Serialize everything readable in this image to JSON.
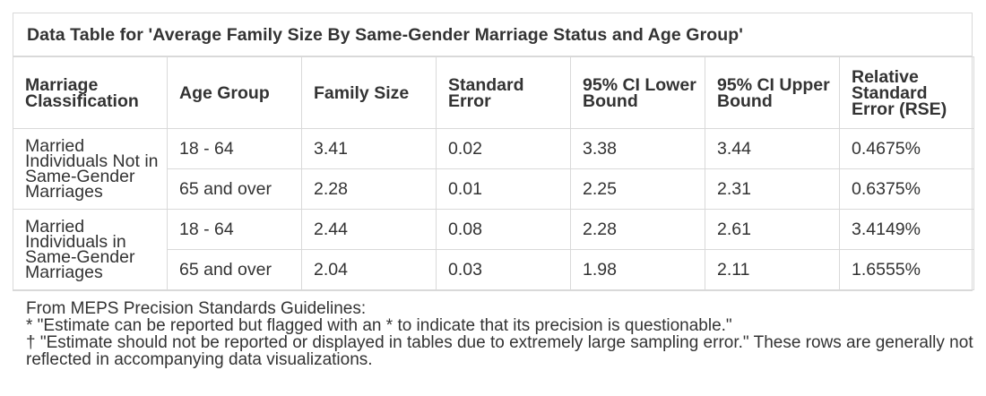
{
  "title": "Data Table for 'Average Family Size By Same-Gender Marriage Status and Age Group'",
  "columns": [
    "Marriage Classification",
    "Age Group",
    "Family Size",
    "Standard Error",
    "95% CI Lower Bound",
    "95% CI Upper Bound",
    "Relative Standard Error (RSE)"
  ],
  "groups": [
    {
      "label": "Married Individuals Not in Same-Gender Marriages",
      "rows": [
        {
          "age": "18 - 64",
          "size": "3.41",
          "se": "0.02",
          "lower": "3.38",
          "upper": "3.44",
          "rse": "0.4675%"
        },
        {
          "age": "65 and over",
          "size": "2.28",
          "se": "0.01",
          "lower": "2.25",
          "upper": "2.31",
          "rse": "0.6375%"
        }
      ]
    },
    {
      "label": "Married Individuals in Same-Gender Marriages",
      "rows": [
        {
          "age": "18 - 64",
          "size": "2.44",
          "se": "0.08",
          "lower": "2.28",
          "upper": "2.61",
          "rse": "3.4149%"
        },
        {
          "age": "65 and over",
          "size": "2.04",
          "se": "0.03",
          "lower": "1.98",
          "upper": "2.11",
          "rse": "1.6555%"
        }
      ]
    }
  ],
  "footnotes": {
    "source": "From MEPS Precision Standards Guidelines:",
    "asterisk": "* \"Estimate can be reported but flagged with an * to indicate that its precision is questionable.\"",
    "dagger": "† \"Estimate should not be reported or displayed in tables due to extremely large sampling error.\" These rows are generally not reflected in accompanying data visualizations."
  }
}
